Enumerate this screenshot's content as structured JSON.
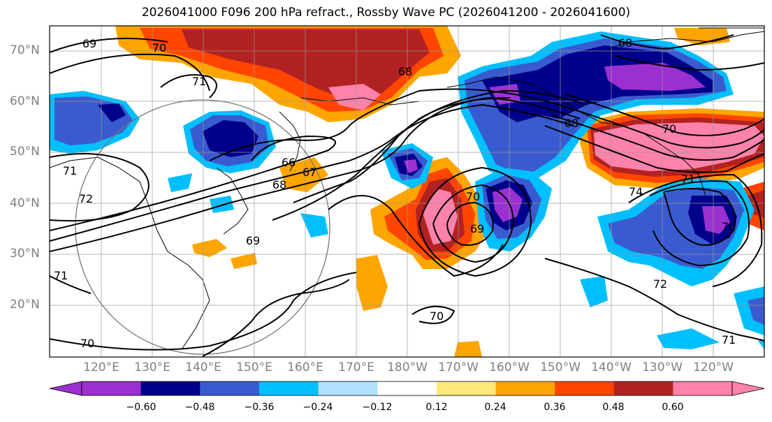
{
  "title": "2026041000 F096 200 hPa refract., Rossby Wave PC (2026041200 - 2026041600)",
  "lat_labels": [
    "70°N",
    "60°N",
    "50°N",
    "40°N",
    "30°N",
    "20°N"
  ],
  "lon_labels": [
    "120°E",
    "130°E",
    "140°E",
    "150°E",
    "160°E",
    "170°E",
    "180°W",
    "170°W",
    "160°W",
    "150°W",
    "140°W",
    "130°W",
    "120°W"
  ],
  "colorbar": {
    "tick_labels": [
      "−0.60",
      "−0.48",
      "−0.36",
      "−0.24",
      "−0.12",
      "0.12",
      "0.24",
      "0.36",
      "0.48",
      "0.60"
    ],
    "colors": [
      "#9b30d0",
      "#00008b",
      "#3a5bd0",
      "#00bfff",
      "#b0e0ff",
      "#ffffff",
      "#ffe97a",
      "#ffa500",
      "#ff4500",
      "#b22222",
      "#ff82ab"
    ]
  },
  "contour_labels": [
    "69",
    "70",
    "71",
    "68",
    "68",
    "66",
    "67",
    "68",
    "71",
    "72",
    "69",
    "70",
    "69",
    "70",
    "74",
    "71",
    "70",
    "72",
    "71",
    "70",
    "68",
    "70",
    "71"
  ]
}
